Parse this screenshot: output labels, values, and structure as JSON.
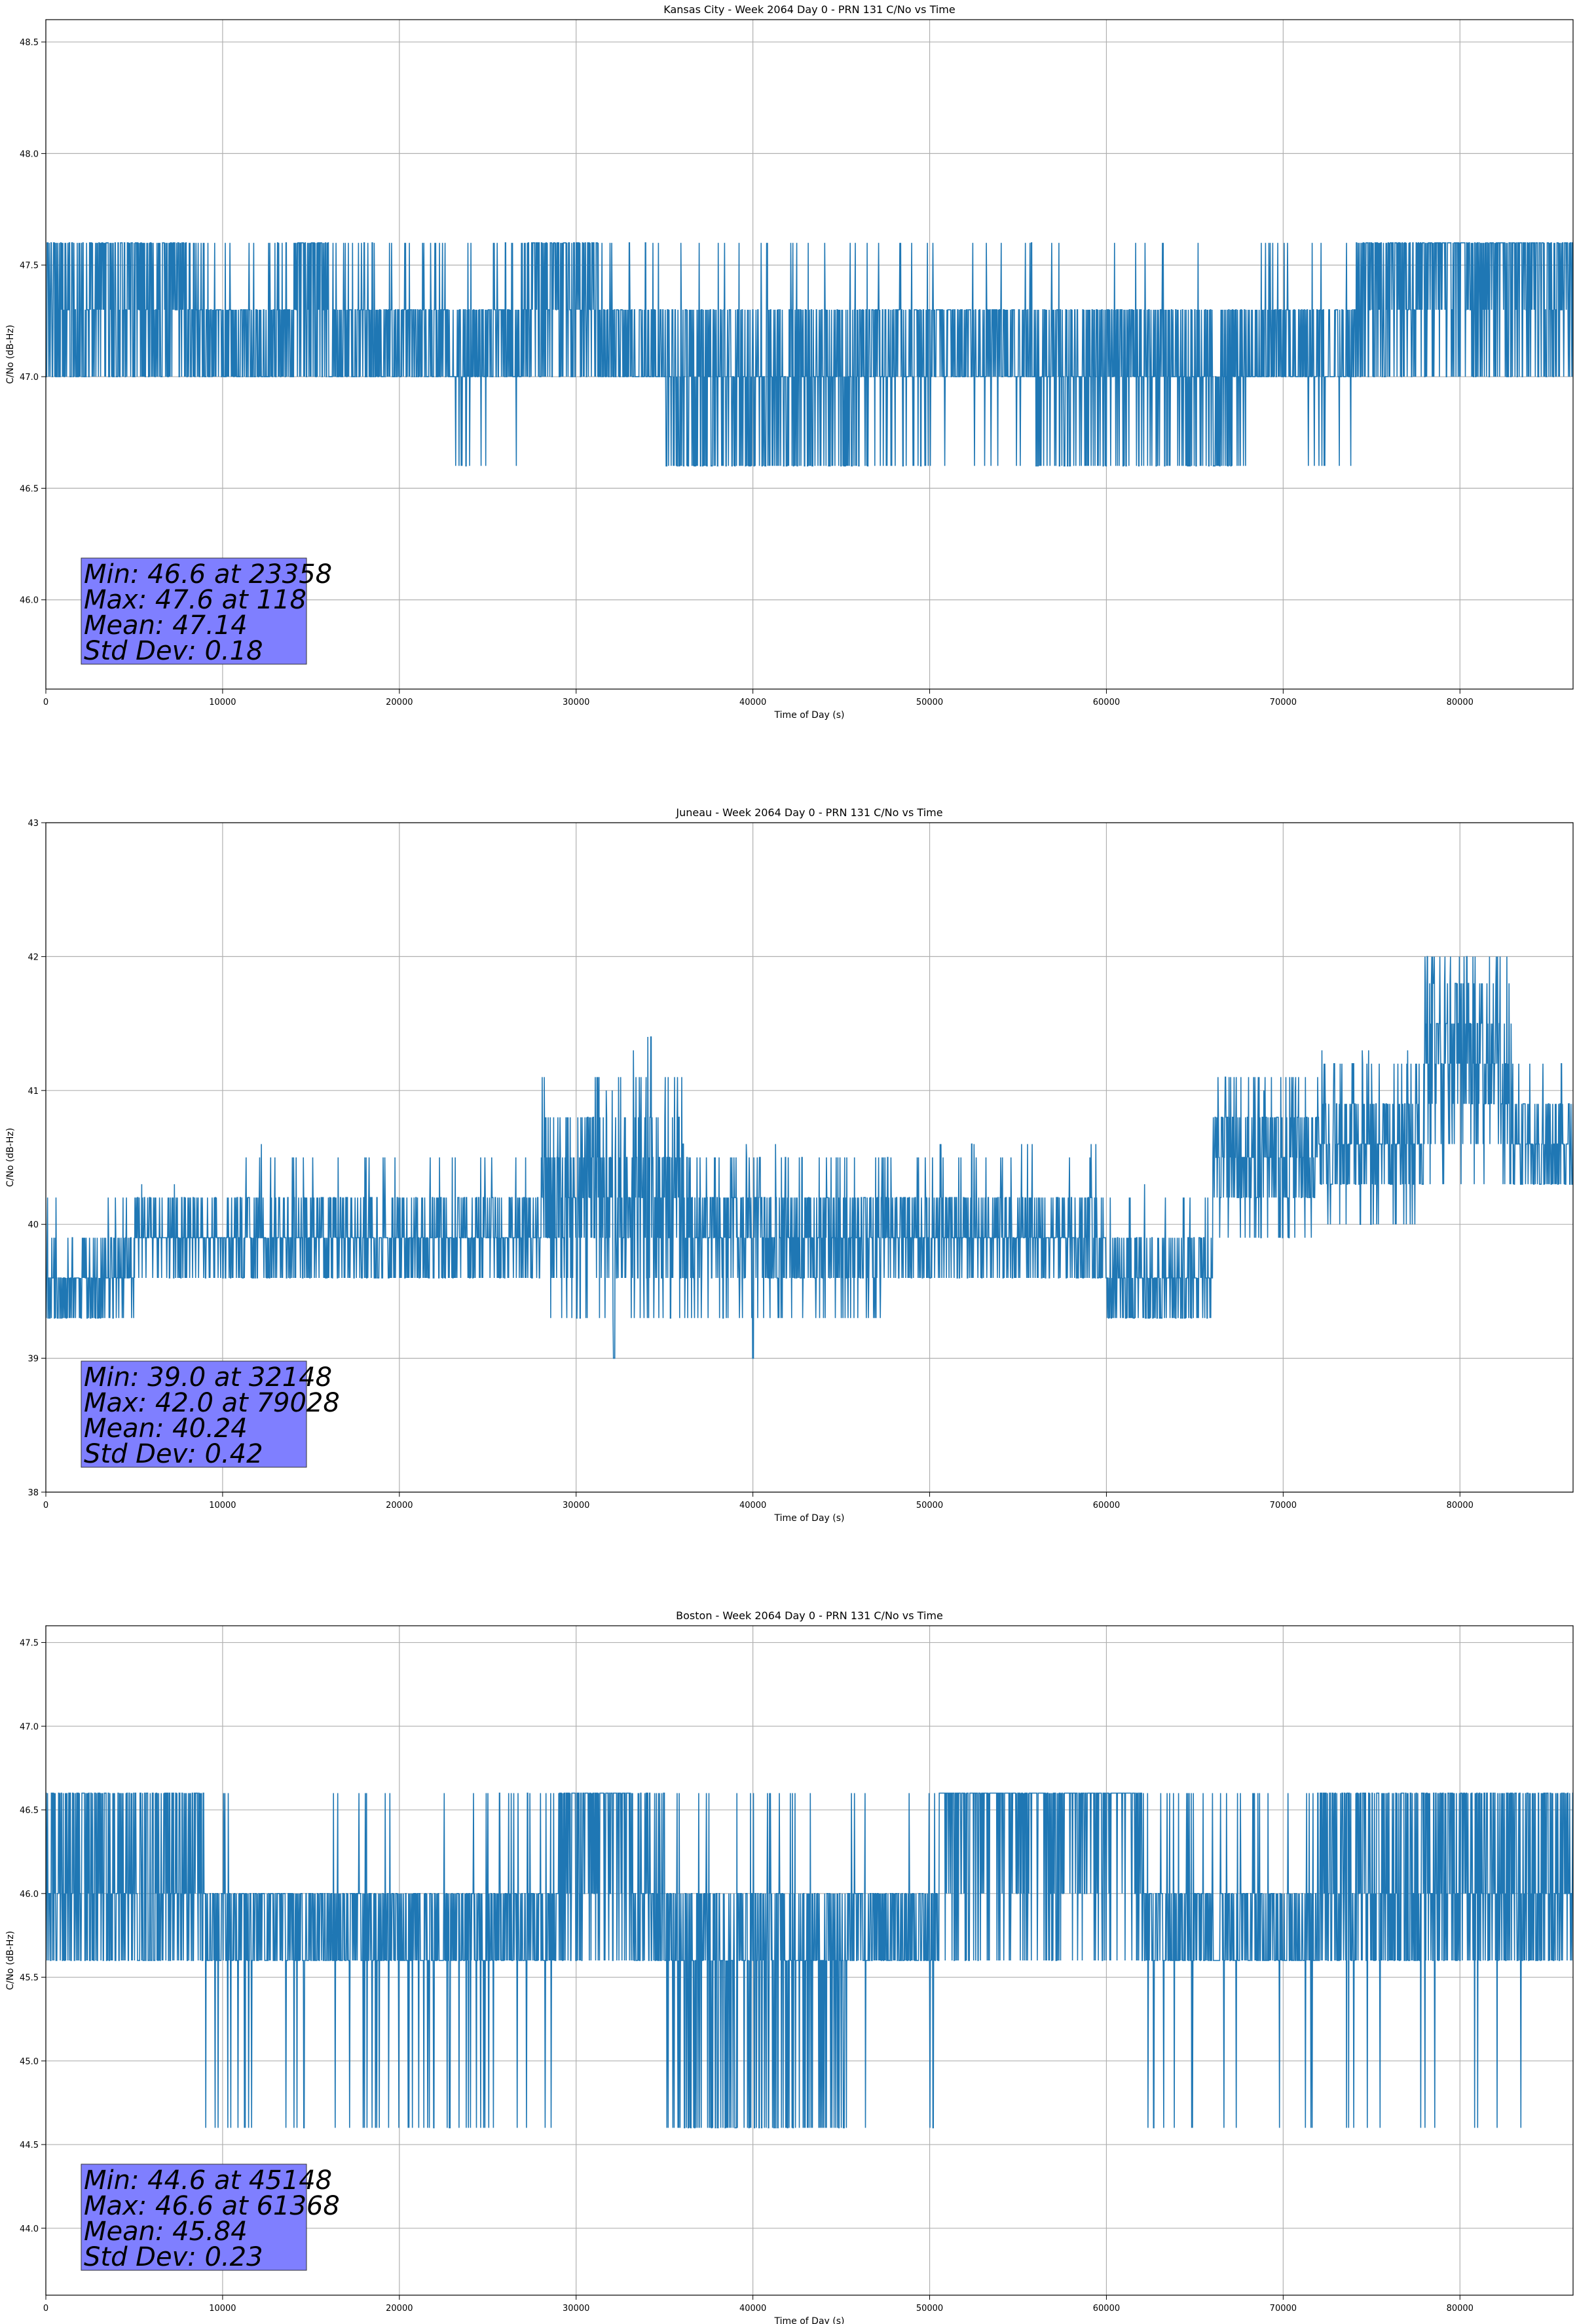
{
  "colors": {
    "series": "#1f77b4",
    "grid": "#b0b0b0",
    "stats_box": "#7f7fff"
  },
  "chart_data": [
    {
      "type": "line",
      "title": "Kansas City - Week 2064 Day 0 - PRN 131 C/No vs Time",
      "xlabel": "Time of Day (s)",
      "ylabel": "C/No (dB-Hz)",
      "xlim": [
        0,
        86400
      ],
      "ylim": [
        45.6,
        48.6
      ],
      "grid": true,
      "x_ticks": [
        0,
        10000,
        20000,
        30000,
        40000,
        50000,
        60000,
        70000,
        80000
      ],
      "y_ticks": [
        46.0,
        46.5,
        47.0,
        47.5,
        48.0,
        48.5
      ],
      "x_tick_labels": [
        "0",
        "10000",
        "20000",
        "30000",
        "40000",
        "50000",
        "60000",
        "70000",
        "80000"
      ],
      "y_tick_labels": [
        "46.0",
        "46.5",
        "47.0",
        "47.5",
        "48.0",
        "48.5"
      ],
      "series": [
        {
          "band": [
            47.0,
            47.3
          ],
          "step": 0.3,
          "min": 46.6,
          "max": 47.6
        }
      ],
      "stats": [
        "Min: 46.6 at 23358",
        "Max: 47.6 at 118",
        "Mean: 47.14",
        "Std Dev: 0.18"
      ]
    },
    {
      "type": "line",
      "title": "Juneau - Week 2064 Day 0 - PRN 131 C/No vs Time",
      "xlabel": "Time of Day (s)",
      "ylabel": "C/No (dB-Hz)",
      "xlim": [
        0,
        86400
      ],
      "ylim": [
        38,
        43
      ],
      "grid": true,
      "x_ticks": [
        0,
        10000,
        20000,
        30000,
        40000,
        50000,
        60000,
        70000,
        80000
      ],
      "y_ticks": [
        38,
        39,
        40,
        41,
        42,
        43
      ],
      "x_tick_labels": [
        "0",
        "10000",
        "20000",
        "30000",
        "40000",
        "50000",
        "60000",
        "70000",
        "80000"
      ],
      "y_tick_labels": [
        "38",
        "39",
        "40",
        "41",
        "42",
        "43"
      ],
      "series": [
        {
          "band": [
            39.6,
            40.6
          ],
          "step": 0.3,
          "min": 39.0,
          "max": 42.0
        }
      ],
      "stats": [
        "Min: 39.0 at 32148",
        "Max: 42.0 at 79028",
        "Mean: 40.24",
        "Std Dev: 0.42"
      ]
    },
    {
      "type": "line",
      "title": "Boston - Week 2064 Day 0 - PRN 131 C/No vs Time",
      "xlabel": "Time of Day (s)",
      "ylabel": "C/No (dB-Hz)",
      "xlim": [
        0,
        86400
      ],
      "ylim": [
        43.6,
        47.6
      ],
      "grid": true,
      "x_ticks": [
        0,
        10000,
        20000,
        30000,
        40000,
        50000,
        60000,
        70000,
        80000
      ],
      "y_ticks": [
        44.0,
        44.5,
        45.0,
        45.5,
        46.0,
        46.5,
        47.0,
        47.5
      ],
      "x_tick_labels": [
        "0",
        "10000",
        "20000",
        "30000",
        "40000",
        "50000",
        "60000",
        "70000",
        "80000"
      ],
      "y_tick_labels": [
        "44.0",
        "44.5",
        "45.0",
        "45.5",
        "46.0",
        "46.5",
        "47.0",
        "47.5"
      ],
      "series": [
        {
          "band": [
            45.6,
            46.0
          ],
          "step": 0.3,
          "min": 44.6,
          "max": 46.6
        }
      ],
      "stats": [
        "Min: 44.6 at 45148",
        "Max: 46.6 at 61368",
        "Mean: 45.84",
        "Std Dev: 0.23"
      ]
    }
  ]
}
